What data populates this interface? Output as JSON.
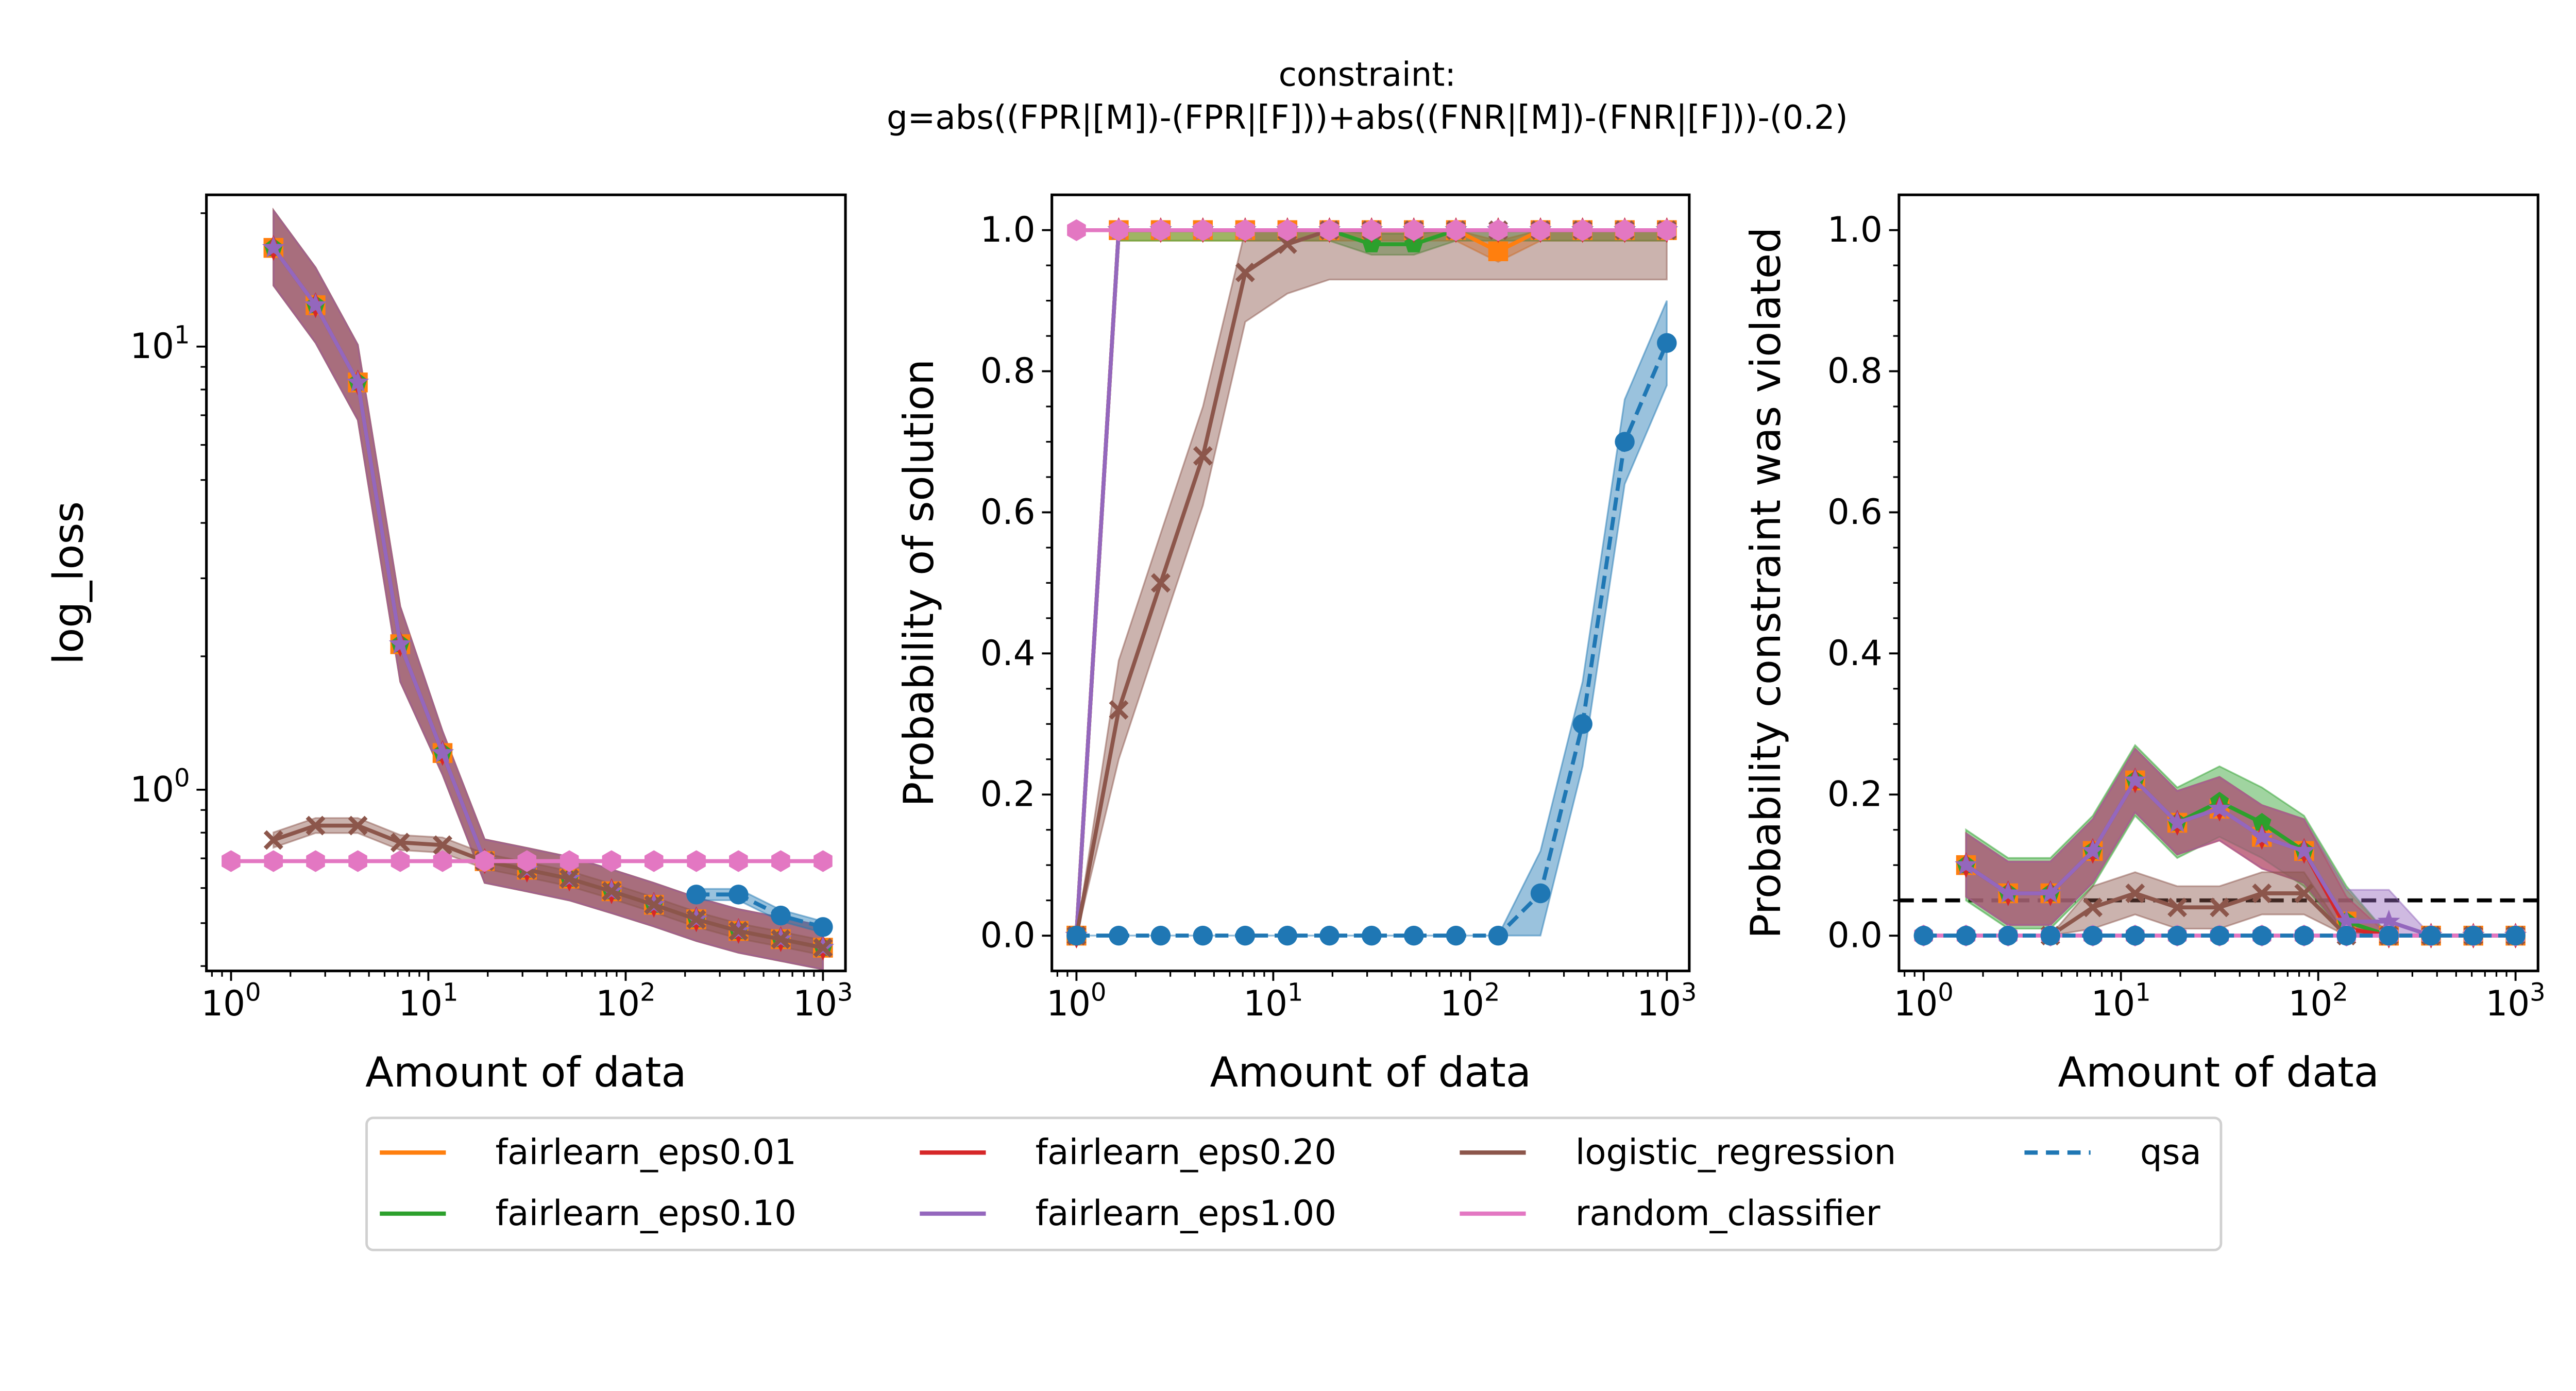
{
  "chart_data": {
    "title_lines": [
      "constraint:",
      "g=abs((FPR|[M])-(FPR|[F]))+abs((FNR|[M])-(FNR|[F]))-(0.2)"
    ],
    "x_values": [
      1,
      1.64,
      2.68,
      4.39,
      7.2,
      11.8,
      19.3,
      31.6,
      51.8,
      84.8,
      139,
      228,
      373,
      611,
      1000
    ],
    "series_styles": [
      {
        "name": "fairlearn_eps0.01",
        "color": "#ff7f0e",
        "marker": "square",
        "dash": "solid"
      },
      {
        "name": "fairlearn_eps0.10",
        "color": "#2ca02c",
        "marker": "pentagon",
        "dash": "solid"
      },
      {
        "name": "fairlearn_eps0.20",
        "color": "#d62728",
        "marker": "thin-diamond",
        "dash": "solid"
      },
      {
        "name": "fairlearn_eps1.00",
        "color": "#9467bd",
        "marker": "star",
        "dash": "solid"
      },
      {
        "name": "logistic_regression",
        "color": "#8c564b",
        "marker": "x",
        "dash": "solid"
      },
      {
        "name": "random_classifier",
        "color": "#e377c2",
        "marker": "hexagon",
        "dash": "solid"
      },
      {
        "name": "qsa",
        "color": "#1f77b4",
        "marker": "circle",
        "dash": "dashed"
      }
    ],
    "legend": {
      "placement": "bottom-center",
      "columns": 4,
      "entries": [
        "fairlearn_eps0.01",
        "fairlearn_eps0.10",
        "fairlearn_eps0.20",
        "fairlearn_eps1.00",
        "logistic_regression",
        "random_classifier",
        "qsa"
      ]
    },
    "panels": [
      {
        "type": "line",
        "xlabel": "Amount of data",
        "ylabel": "log_loss",
        "xscale": "log",
        "yscale": "log",
        "xlim": [
          0.75,
          1300
        ],
        "ylim": [
          0.39,
          22
        ],
        "xticks": [
          {
            "v": 1,
            "label": "10^0"
          },
          {
            "v": 10,
            "label": "10^1"
          },
          {
            "v": 100,
            "label": "10^2"
          },
          {
            "v": 1000,
            "label": "10^3"
          }
        ],
        "yticks": [
          {
            "v": 1,
            "label": "10^0"
          },
          {
            "v": 10,
            "label": "10^1"
          }
        ],
        "series": [
          {
            "name": "fairlearn_eps0.01",
            "start": 1,
            "values": [
              16.7,
              12.4,
              8.3,
              2.13,
              1.21,
              0.69,
              0.66,
              0.63,
              0.59,
              0.55,
              0.51,
              0.48,
              0.46,
              0.44
            ],
            "band": 0.12
          },
          {
            "name": "fairlearn_eps0.10",
            "start": 1,
            "values": [
              16.7,
              12.4,
              8.3,
              2.13,
              1.21,
              0.69,
              0.66,
              0.63,
              0.59,
              0.55,
              0.51,
              0.48,
              0.46,
              0.44
            ],
            "band": 0.12
          },
          {
            "name": "fairlearn_eps0.20",
            "start": 1,
            "values": [
              16.7,
              12.4,
              8.3,
              2.13,
              1.21,
              0.69,
              0.66,
              0.63,
              0.59,
              0.55,
              0.51,
              0.48,
              0.46,
              0.44
            ],
            "band": 0.12
          },
          {
            "name": "fairlearn_eps1.00",
            "start": 1,
            "values": [
              16.7,
              12.4,
              8.3,
              2.13,
              1.21,
              0.69,
              0.66,
              0.63,
              0.59,
              0.55,
              0.51,
              0.48,
              0.46,
              0.44
            ],
            "band": 0.12
          },
          {
            "name": "logistic_regression",
            "start": 1,
            "values": [
              0.77,
              0.83,
              0.83,
              0.76,
              0.75,
              0.69,
              0.66,
              0.63,
              0.59,
              0.55,
              0.51,
              0.48,
              0.46,
              0.44
            ],
            "band": 0.04
          },
          {
            "name": "random_classifier",
            "start": 0,
            "values": [
              0.69,
              0.69,
              0.69,
              0.69,
              0.69,
              0.69,
              0.69,
              0.69,
              0.69,
              0.69,
              0.69,
              0.69,
              0.69,
              0.69,
              0.69
            ],
            "band": 0
          },
          {
            "name": "qsa",
            "start": 11,
            "values": [
              0.58,
              0.58,
              0.52,
              0.49
            ],
            "band": 0.03
          }
        ]
      },
      {
        "type": "line",
        "xlabel": "Amount of data",
        "ylabel": "Probability of solution",
        "xscale": "log",
        "yscale": "linear",
        "xlim": [
          0.75,
          1300
        ],
        "ylim": [
          -0.05,
          1.05
        ],
        "xticks": [
          {
            "v": 1,
            "label": "10^0"
          },
          {
            "v": 10,
            "label": "10^1"
          },
          {
            "v": 100,
            "label": "10^2"
          },
          {
            "v": 1000,
            "label": "10^3"
          }
        ],
        "yticks": [
          {
            "v": 0,
            "label": "0.0"
          },
          {
            "v": 0.2,
            "label": "0.2"
          },
          {
            "v": 0.4,
            "label": "0.4"
          },
          {
            "v": 0.6,
            "label": "0.6"
          },
          {
            "v": 0.8,
            "label": "0.8"
          },
          {
            "v": 1.0,
            "label": "1.0"
          }
        ],
        "series": [
          {
            "name": "fairlearn_eps0.01",
            "start": 0,
            "values": [
              0,
              1,
              1,
              1,
              1,
              1,
              1,
              1,
              1,
              1,
              0.97,
              1,
              1,
              1,
              1
            ],
            "band": 0.015
          },
          {
            "name": "fairlearn_eps0.10",
            "start": 0,
            "values": [
              0,
              1,
              1,
              1,
              1,
              1,
              1,
              0.98,
              0.98,
              1,
              1,
              1,
              1,
              1,
              1
            ],
            "band": 0.015
          },
          {
            "name": "fairlearn_eps0.20",
            "start": 0,
            "values": [
              0,
              1,
              1,
              1,
              1,
              1,
              1,
              1,
              1,
              1,
              1,
              1,
              1,
              1,
              1
            ],
            "band": 0
          },
          {
            "name": "fairlearn_eps1.00",
            "start": 0,
            "values": [
              0,
              1,
              1,
              1,
              1,
              1,
              1,
              1,
              1,
              1,
              1,
              1,
              1,
              1,
              1
            ],
            "band": 0
          },
          {
            "name": "logistic_regression",
            "start": 0,
            "values": [
              0,
              0.32,
              0.5,
              0.68,
              0.94,
              0.98,
              1,
              1,
              1,
              1,
              1,
              1,
              1,
              1,
              1
            ],
            "band": 0.07
          },
          {
            "name": "random_classifier",
            "start": 0,
            "values": [
              1,
              1,
              1,
              1,
              1,
              1,
              1,
              1,
              1,
              1,
              1,
              1,
              1,
              1,
              1
            ],
            "band": 0
          },
          {
            "name": "qsa",
            "start": 0,
            "values": [
              0,
              0,
              0,
              0,
              0,
              0,
              0,
              0,
              0,
              0,
              0,
              0.06,
              0.3,
              0.7,
              0.84
            ],
            "band": 0.06
          }
        ]
      },
      {
        "type": "line",
        "xlabel": "Amount of data",
        "ylabel": "Probability constraint was violated",
        "xscale": "log",
        "yscale": "linear",
        "xlim": [
          0.75,
          1300
        ],
        "ylim": [
          -0.05,
          1.05
        ],
        "xticks": [
          {
            "v": 1,
            "label": "10^0"
          },
          {
            "v": 10,
            "label": "10^1"
          },
          {
            "v": 100,
            "label": "10^2"
          },
          {
            "v": 1000,
            "label": "10^3"
          }
        ],
        "yticks": [
          {
            "v": 0,
            "label": "0.0"
          },
          {
            "v": 0.2,
            "label": "0.2"
          },
          {
            "v": 0.4,
            "label": "0.4"
          },
          {
            "v": 0.6,
            "label": "0.6"
          },
          {
            "v": 0.8,
            "label": "0.8"
          },
          {
            "v": 1.0,
            "label": "1.0"
          }
        ],
        "hline": {
          "value": 0.05,
          "color": "#000000",
          "style": "dashed"
        },
        "series": [
          {
            "name": "fairlearn_eps0.01",
            "start": 1,
            "values": [
              0.1,
              0.06,
              0.06,
              0.12,
              0.22,
              0.16,
              0.18,
              0.14,
              0.12,
              0.02,
              0,
              0,
              0,
              0
            ],
            "band": 0.045
          },
          {
            "name": "fairlearn_eps0.10",
            "start": 1,
            "values": [
              0.1,
              0.06,
              0.06,
              0.12,
              0.22,
              0.16,
              0.19,
              0.16,
              0.12,
              0.02,
              0,
              0,
              0,
              0
            ],
            "band": 0.05
          },
          {
            "name": "fairlearn_eps0.20",
            "start": 1,
            "values": [
              0.1,
              0.06,
              0.06,
              0.12,
              0.22,
              0.16,
              0.18,
              0.14,
              0.12,
              0.01,
              0,
              0,
              0,
              0
            ],
            "band": 0.045
          },
          {
            "name": "fairlearn_eps1.00",
            "start": 1,
            "values": [
              0.1,
              0.06,
              0.06,
              0.12,
              0.22,
              0.16,
              0.18,
              0.14,
              0.12,
              0.02,
              0.02,
              0,
              0,
              0
            ],
            "band": 0.045
          },
          {
            "name": "logistic_regression",
            "start": 3,
            "values": [
              0,
              0.04,
              0.06,
              0.04,
              0.04,
              0.06,
              0.06,
              0,
              0,
              0,
              0,
              0
            ],
            "band": 0.03
          },
          {
            "name": "random_classifier",
            "start": 0,
            "values": [
              0,
              0,
              0,
              0,
              0,
              0,
              0,
              0,
              0,
              0,
              0,
              0,
              0,
              0,
              0
            ],
            "band": 0
          },
          {
            "name": "qsa",
            "start": 0,
            "values": [
              0,
              0,
              0,
              0,
              0,
              0,
              0,
              0,
              0,
              0,
              0,
              0,
              0,
              0,
              0
            ],
            "band": 0
          }
        ]
      }
    ]
  }
}
